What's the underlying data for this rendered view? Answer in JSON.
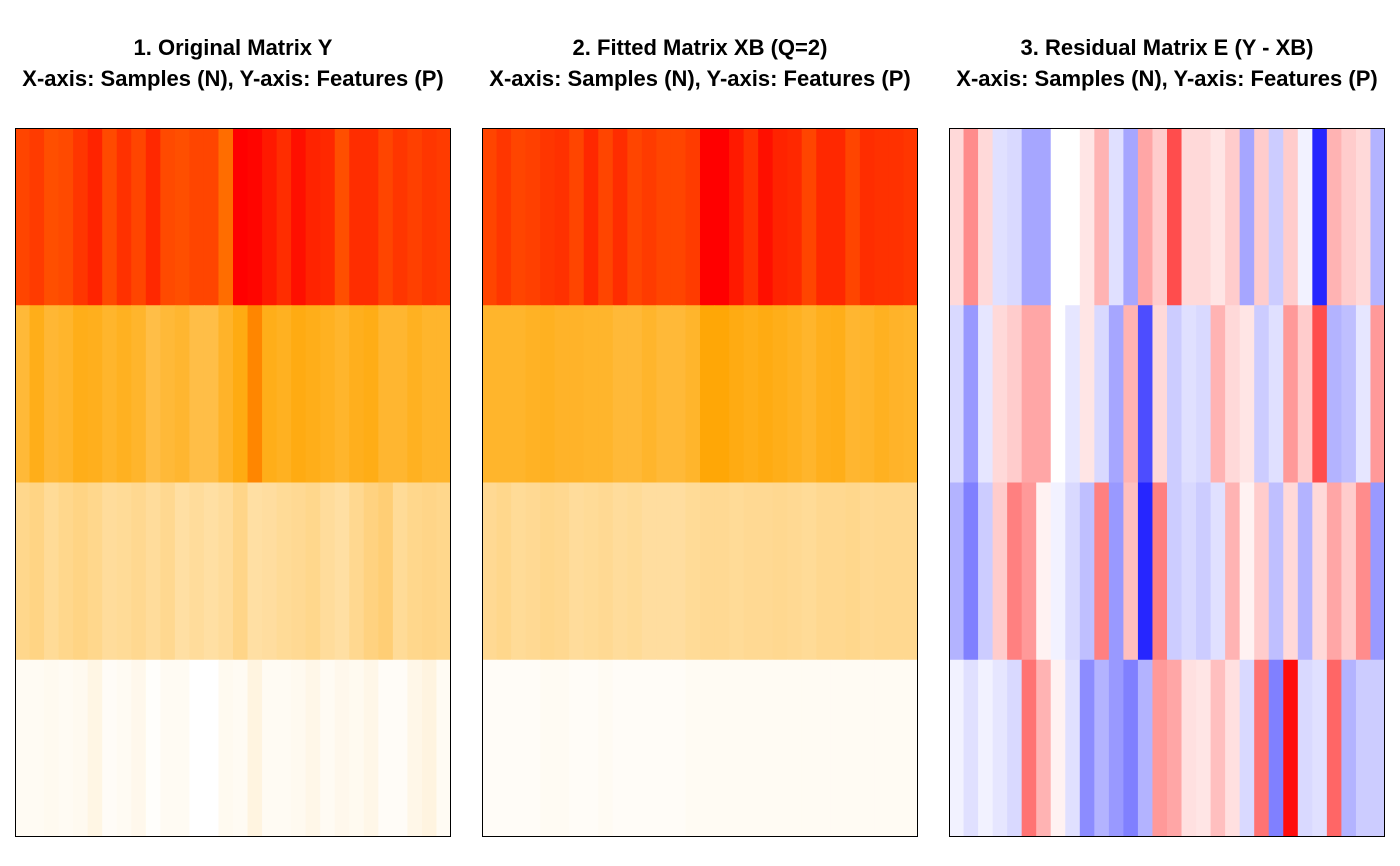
{
  "chart_data": [
    {
      "type": "heatmap",
      "title": "1. Original Matrix Y",
      "subtitle": "X-axis: Samples (N), Y-axis: Features (P)",
      "rows": 4,
      "cols": 30,
      "palette": "heat",
      "colors": {
        "low": "#ffffff",
        "mid1": "#ffd27f",
        "mid2": "#ffa500",
        "high": "#ff0000"
      },
      "range": [
        0,
        1
      ],
      "values": [
        [
          0.86,
          0.88,
          0.84,
          0.85,
          0.89,
          0.93,
          0.85,
          0.9,
          0.86,
          0.92,
          0.85,
          0.84,
          0.86,
          0.86,
          0.78,
          1.0,
          0.99,
          0.95,
          0.91,
          0.97,
          0.93,
          0.92,
          0.84,
          0.91,
          0.91,
          0.86,
          0.89,
          0.87,
          0.89,
          0.88
        ],
        [
          0.52,
          0.6,
          0.53,
          0.55,
          0.6,
          0.59,
          0.55,
          0.58,
          0.55,
          0.48,
          0.52,
          0.54,
          0.48,
          0.48,
          0.56,
          0.62,
          0.73,
          0.6,
          0.58,
          0.62,
          0.6,
          0.58,
          0.55,
          0.59,
          0.61,
          0.54,
          0.54,
          0.58,
          0.55,
          0.55
        ],
        [
          0.3,
          0.32,
          0.27,
          0.3,
          0.32,
          0.3,
          0.26,
          0.27,
          0.29,
          0.26,
          0.29,
          0.24,
          0.26,
          0.24,
          0.26,
          0.31,
          0.24,
          0.25,
          0.27,
          0.28,
          0.3,
          0.26,
          0.24,
          0.29,
          0.33,
          0.36,
          0.27,
          0.3,
          0.31,
          0.3
        ],
        [
          0.03,
          0.03,
          0.04,
          0.03,
          0.04,
          0.07,
          0.02,
          0.03,
          0.05,
          0.01,
          0.03,
          0.03,
          0.0,
          0.0,
          0.04,
          0.03,
          0.08,
          0.03,
          0.03,
          0.04,
          0.06,
          0.03,
          0.05,
          0.04,
          0.06,
          0.02,
          0.02,
          0.06,
          0.08,
          0.03
        ]
      ]
    },
    {
      "type": "heatmap",
      "title": "2. Fitted Matrix XB (Q=2)",
      "subtitle": "X-axis: Samples (N), Y-axis: Features (P)",
      "rows": 4,
      "cols": 30,
      "palette": "heat",
      "colors": {
        "low": "#ffffff",
        "mid1": "#ffd27f",
        "mid2": "#ffa500",
        "high": "#ff0000"
      },
      "range": [
        0,
        1
      ],
      "values": [
        [
          0.86,
          0.89,
          0.86,
          0.87,
          0.89,
          0.9,
          0.86,
          0.92,
          0.86,
          0.91,
          0.86,
          0.88,
          0.86,
          0.86,
          0.88,
          1.0,
          1.0,
          0.95,
          0.9,
          0.97,
          0.93,
          0.92,
          0.86,
          0.92,
          0.92,
          0.86,
          0.91,
          0.9,
          0.9,
          0.89
        ],
        [
          0.55,
          0.55,
          0.55,
          0.57,
          0.58,
          0.56,
          0.56,
          0.55,
          0.55,
          0.52,
          0.52,
          0.55,
          0.52,
          0.52,
          0.55,
          0.65,
          0.65,
          0.62,
          0.6,
          0.62,
          0.6,
          0.58,
          0.55,
          0.59,
          0.6,
          0.54,
          0.55,
          0.58,
          0.56,
          0.55
        ],
        [
          0.28,
          0.3,
          0.27,
          0.28,
          0.3,
          0.29,
          0.26,
          0.27,
          0.28,
          0.26,
          0.27,
          0.25,
          0.25,
          0.25,
          0.27,
          0.28,
          0.28,
          0.27,
          0.28,
          0.28,
          0.29,
          0.28,
          0.27,
          0.29,
          0.29,
          0.3,
          0.28,
          0.29,
          0.29,
          0.29
        ],
        [
          0.02,
          0.02,
          0.02,
          0.02,
          0.03,
          0.03,
          0.02,
          0.02,
          0.03,
          0.02,
          0.02,
          0.02,
          0.02,
          0.02,
          0.03,
          0.03,
          0.03,
          0.03,
          0.03,
          0.03,
          0.03,
          0.03,
          0.03,
          0.03,
          0.03,
          0.03,
          0.03,
          0.03,
          0.03,
          0.03
        ]
      ]
    },
    {
      "type": "heatmap",
      "title": "3. Residual Matrix E (Y - XB)",
      "subtitle": "X-axis: Samples (N), Y-axis: Features (P)",
      "rows": 4,
      "cols": 30,
      "palette": "blue-white-red",
      "colors": {
        "low": "#0000ff",
        "mid": "#ffffff",
        "high": "#ff0000"
      },
      "range": [
        -1,
        1
      ],
      "values": [
        [
          0.15,
          0.45,
          0.15,
          -0.12,
          -0.15,
          -0.35,
          -0.35,
          0.0,
          0.0,
          0.1,
          0.3,
          -0.12,
          -0.35,
          0.35,
          0.2,
          0.7,
          0.15,
          0.15,
          0.1,
          0.2,
          -0.35,
          0.2,
          -0.2,
          0.2,
          -0.05,
          -0.85,
          0.3,
          0.2,
          0.15,
          -0.3
        ],
        [
          -0.15,
          -0.4,
          -0.1,
          0.15,
          0.2,
          0.35,
          0.35,
          0.0,
          -0.1,
          0.1,
          -0.15,
          -0.35,
          0.3,
          -0.7,
          0.15,
          -0.2,
          -0.12,
          -0.15,
          0.3,
          0.15,
          0.1,
          -0.2,
          -0.12,
          0.4,
          0.2,
          0.7,
          -0.3,
          -0.25,
          -0.1,
          0.4
        ],
        [
          -0.3,
          -0.5,
          -0.2,
          0.2,
          0.5,
          0.4,
          0.05,
          -0.05,
          -0.15,
          -0.25,
          0.5,
          -0.4,
          0.25,
          -0.85,
          0.5,
          -0.2,
          -0.15,
          -0.2,
          -0.12,
          0.3,
          0.05,
          0.2,
          -0.25,
          0.15,
          -0.3,
          0.15,
          0.35,
          0.2,
          0.45,
          -0.4
        ],
        [
          -0.05,
          -0.12,
          -0.05,
          -0.1,
          -0.15,
          0.55,
          0.3,
          0.05,
          -0.12,
          -0.45,
          -0.3,
          -0.4,
          -0.5,
          -0.3,
          0.4,
          0.35,
          0.12,
          0.1,
          0.25,
          0.12,
          -0.15,
          0.55,
          -0.5,
          0.95,
          -0.15,
          -0.12,
          0.6,
          -0.3,
          -0.2,
          -0.2
        ]
      ]
    }
  ]
}
